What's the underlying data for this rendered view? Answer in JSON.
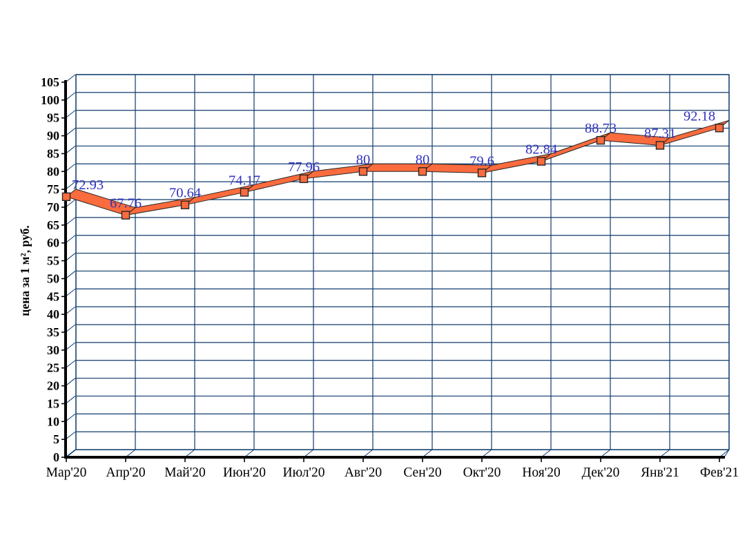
{
  "chart_data": {
    "type": "line",
    "style": "3d-ribbon",
    "title": "",
    "xlabel": "",
    "ylabel": "цена за 1 м², руб.",
    "categories": [
      "Мар'20",
      "Апр'20",
      "Май'20",
      "Июн'20",
      "Июл'20",
      "Авг'20",
      "Сен'20",
      "Окт'20",
      "Ноя'20",
      "Дек'20",
      "Янв'21",
      "Фев'21"
    ],
    "values": [
      72.93,
      67.76,
      70.64,
      74.17,
      77.96,
      80,
      80,
      79.6,
      82.84,
      88.73,
      87.31,
      92.18
    ],
    "point_labels": [
      "72.93",
      "67.76",
      "70.64",
      "74.17",
      "77.96",
      "80",
      "80",
      "79.6",
      "82.84",
      "88.73",
      "87.31",
      "92.18"
    ],
    "ylim": [
      0,
      105
    ],
    "ytick_step": 5,
    "yticks": [
      0,
      5,
      10,
      15,
      20,
      25,
      30,
      35,
      40,
      45,
      50,
      55,
      60,
      65,
      70,
      75,
      80,
      85,
      90,
      95,
      100,
      105
    ],
    "grid": true,
    "legend": false,
    "colors": {
      "background": "#ffffff",
      "grid": "#0e3a6b",
      "axis": "#000000",
      "ribbon_fill": "#fa6b3d",
      "ribbon_outline": "#262626",
      "marker_fill": "#fa6b3d",
      "marker_outline": "#262626",
      "data_label": "#3131bf",
      "tick_label": "#000000"
    }
  }
}
